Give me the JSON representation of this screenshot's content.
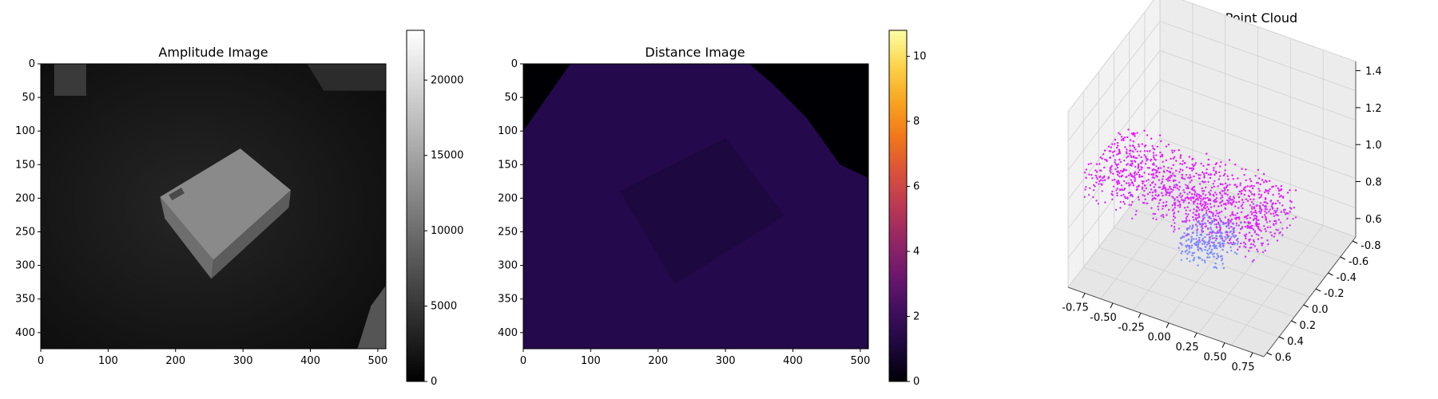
{
  "chart_data": [
    {
      "type": "heatmap",
      "title": "Amplitude Image",
      "image_size": [
        512,
        424
      ],
      "colormap": "gray",
      "x_ticks": [
        0,
        100,
        200,
        300,
        400,
        500
      ],
      "y_ticks": [
        0,
        50,
        100,
        150,
        200,
        250,
        300,
        350,
        400
      ],
      "colorbar": {
        "min": 0,
        "max": 23300,
        "ticks": [
          0,
          5000,
          10000,
          15000,
          20000
        ]
      },
      "box_corners": [
        [
          177,
          198
        ],
        [
          296,
          126
        ],
        [
          371,
          188
        ],
        [
          256,
          292
        ]
      ],
      "box_edge_corners": [
        [
          177,
          198
        ],
        [
          256,
          292
        ],
        [
          253,
          320
        ],
        [
          184,
          230
        ]
      ]
    },
    {
      "type": "heatmap",
      "title": "Distance Image",
      "image_size": [
        512,
        424
      ],
      "colormap": "inferno",
      "x_ticks": [
        0,
        100,
        200,
        300,
        400,
        500
      ],
      "y_ticks": [
        0,
        50,
        100,
        150,
        200,
        250,
        300,
        350,
        400
      ],
      "colorbar": {
        "min": 0,
        "max": 10.8,
        "ticks": [
          0,
          2,
          4,
          6,
          8,
          10
        ]
      },
      "background_value": 1.4,
      "box_value": 1.15,
      "invalid_value": 0,
      "box_corners": [
        [
          143,
          190
        ],
        [
          300,
          110
        ],
        [
          388,
          226
        ],
        [
          225,
          328
        ]
      ]
    },
    {
      "type": "scatter",
      "title": "Subsampled Point Cloud",
      "projection": "3d",
      "x_ticks": [
        "-0.75",
        "-0.50",
        "-0.25",
        "0.00",
        "0.25",
        "0.50",
        "0.75"
      ],
      "y_ticks": [
        "-0.8",
        "-0.6",
        "-0.4",
        "-0.2",
        "0.0",
        "0.2",
        "0.4",
        "0.6"
      ],
      "z_ticks": [
        "0.6",
        "0.8",
        "1.0",
        "1.2",
        "1.4"
      ],
      "xlim": [
        -0.9,
        0.85
      ],
      "ylim": [
        -0.85,
        0.65
      ],
      "zlim": [
        0.5,
        1.45
      ],
      "colormap": "cool",
      "color_value": "z",
      "clusters": [
        {
          "x_range": [
            -0.8,
            0.8
          ],
          "y_range": [
            0.0,
            0.6
          ],
          "z_range": [
            0.95,
            1.15
          ],
          "count": 1200
        },
        {
          "x_range": [
            -0.2,
            0.2
          ],
          "y_range": [
            -0.2,
            0.15
          ],
          "z_range": [
            0.58,
            0.72
          ],
          "count": 250
        }
      ]
    }
  ]
}
